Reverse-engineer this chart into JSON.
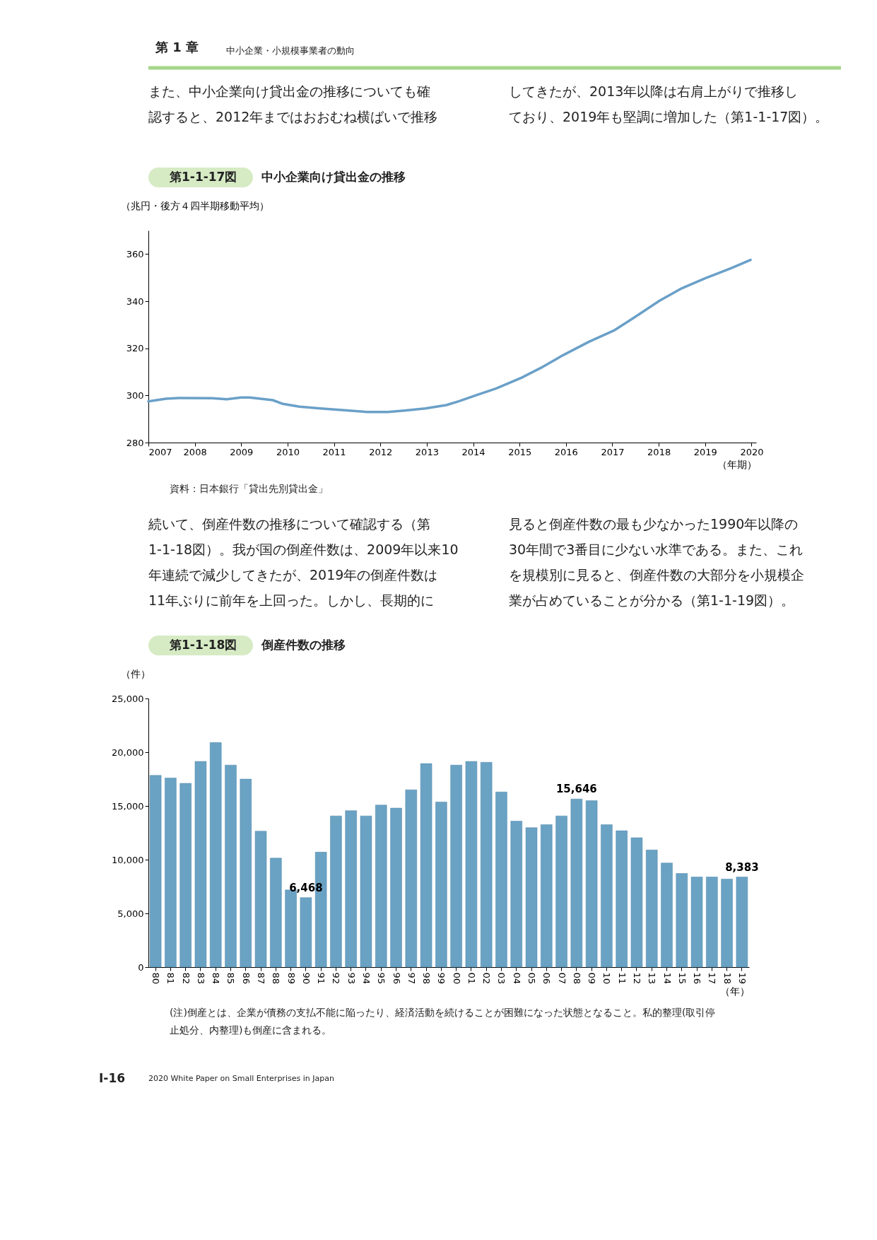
{
  "chart_data": [
    {
      "type": "line",
      "title": "中小企業向け貸出金の推移",
      "subtitle": "第1-1-17図",
      "ylabel": "（兆円・後方４四半期移動平均）",
      "xlabel": "（年期）",
      "annotations": [
        "第 1 章",
        "中小企業・小規模事業者の動向",
        "　また、中小企業向け貸出金の推移についても確",
        "認すると、2012年まではおおむね横ばいで推移",
        "してきたが、2013年以降は右肩上がりで推移し",
        "ており、2019年も堅調に増加した（第1-1-17図）。",
        "資料：日本銀行「貸出先別貸出金」"
      ],
      "xlim": [
        2007,
        2020.1
      ],
      "xticks": [
        2007,
        2008,
        2009,
        2010,
        2011,
        2012,
        2013,
        2014,
        2015,
        2016,
        2017,
        2018,
        2019,
        2020
      ],
      "ylim": [
        280,
        370
      ],
      "yticks": [
        280,
        300,
        320,
        340,
        360
      ],
      "grid": false,
      "series": [
        {
          "color": "#6aa0c8",
          "x": [
            2007.0,
            2007.38,
            2007.65,
            2008.37,
            2008.69,
            2009.0,
            2009.18,
            2009.68,
            2009.9,
            2010.26,
            2010.71,
            2011.17,
            2011.71,
            2012.16,
            2012.52,
            2012.97,
            2013.42,
            2013.69,
            2014.05,
            2014.5,
            2015.04,
            2015.49,
            2015.94,
            2016.49,
            2017.03,
            2017.48,
            2018.02,
            2018.47,
            2019.01,
            2019.55,
            2019.98
          ],
          "values": [
            297.5,
            298.6,
            298.9,
            298.8,
            298.4,
            299.1,
            299.1,
            298.0,
            296.4,
            295.2,
            294.5,
            293.8,
            293.0,
            293.0,
            293.6,
            294.5,
            295.9,
            297.5,
            300.0,
            303.0,
            307.5,
            312.0,
            317.1,
            322.7,
            327.5,
            333.2,
            340.2,
            345.2,
            349.8,
            353.9,
            357.5
          ]
        }
      ]
    },
    {
      "type": "bar",
      "title": "倒産件数の推移",
      "subtitle": "第1-1-18図",
      "ylabel": "（件）",
      "xlabel": "（年）",
      "annotations": [
        "　続いて、倒産件数の推移について確認する（第",
        "1-1-18図）。我が国の倒産件数は、2009年以来10",
        "年連続で減少してきたが、2019年の倒産件数は",
        "11年ぶりに前年を上回った。しかし、長期的に",
        "見ると倒産件数の最も少なかった1990年以降の",
        "30年間で3番目に少ない水準である。また、これ",
        "を規模別に見ると、倒産件数の大部分を小規模企",
        "業が占めていることが分かる（第1-1-19図）。",
        "(注)倒産とは、企業が債務の支払不能に陥ったり、経済活動を続けることが困難になった状態となること。私的整理(取引停",
        "止処分、内整理)も倒産に含まれる。",
        "Ⅰ-16",
        "2020 White Paper on Small Enterprises in Japan"
      ],
      "categories": [
        "80",
        "81",
        "82",
        "83",
        "84",
        "85",
        "86",
        "87",
        "88",
        "89",
        "90",
        "91",
        "92",
        "93",
        "94",
        "95",
        "96",
        "97",
        "98",
        "99",
        "00",
        "01",
        "02",
        "03",
        "04",
        "05",
        "06",
        "07",
        "08",
        "09",
        "10",
        "11",
        "12",
        "13",
        "14",
        "15",
        "16",
        "17",
        "18",
        "19"
      ],
      "values": [
        17840,
        17600,
        17100,
        19140,
        20900,
        18800,
        17500,
        12650,
        10140,
        7180,
        6468,
        10700,
        14070,
        14560,
        14070,
        15080,
        14800,
        16500,
        18940,
        15370,
        18800,
        19140,
        19060,
        16300,
        13580,
        12980,
        13260,
        14070,
        15646,
        15490,
        13260,
        12690,
        12040,
        10900,
        9690,
        8720,
        8390,
        8390,
        8190,
        8383
      ],
      "value_labels": [
        null,
        null,
        null,
        null,
        null,
        null,
        null,
        null,
        null,
        null,
        "6,468",
        null,
        null,
        null,
        null,
        null,
        null,
        null,
        null,
        null,
        null,
        null,
        null,
        null,
        null,
        null,
        null,
        null,
        "15,646",
        null,
        null,
        null,
        null,
        null,
        null,
        null,
        null,
        null,
        null,
        "8,383"
      ],
      "color": "#6aa2c4",
      "ylim": [
        0,
        25000
      ],
      "yticks": [
        0,
        {
          "value": 5000,
          "label": "5,000"
        },
        {
          "value": 10000,
          "label": "10,000"
        },
        {
          "value": 15000,
          "label": "15,000"
        },
        {
          "value": 20000,
          "label": "20,000"
        },
        {
          "value": 25000,
          "label": "25,000"
        }
      ],
      "grid": false
    }
  ]
}
